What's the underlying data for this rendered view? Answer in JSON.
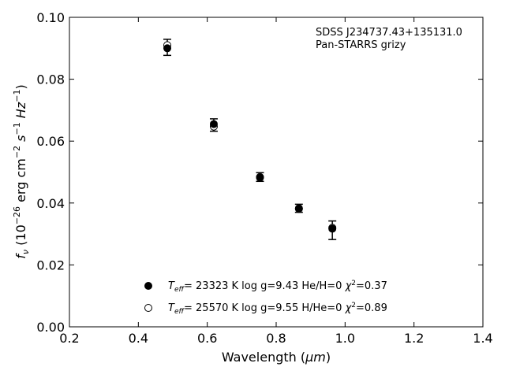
{
  "chart_data": {
    "type": "scatter",
    "annotation": [
      "SDSS J234737.43+135131.0",
      "Pan-STARRS grizy"
    ],
    "xlabel": {
      "text": "Wavelength (",
      "unit": "μm",
      "close": ")"
    },
    "ylabel": {
      "prefix": "f",
      "sub": "ν",
      "rest": " (10",
      "exp1": "−26",
      "units": " erg cm",
      "exp2": "−2",
      "s": " s",
      "exp3": "−1",
      "hz": " Hz",
      "exp4": "−1",
      "close": ")"
    },
    "xlim": [
      0.2,
      1.4
    ],
    "ylim": [
      0.0,
      0.1
    ],
    "xticks": [
      "0.2",
      "0.4",
      "0.6",
      "0.8",
      "1.0",
      "1.2",
      "1.4"
    ],
    "yticks": [
      "0.00",
      "0.02",
      "0.04",
      "0.06",
      "0.08",
      "0.10"
    ],
    "observed": {
      "x": [
        0.484,
        0.619,
        0.753,
        0.866,
        0.963
      ],
      "y": [
        0.0903,
        0.0652,
        0.0484,
        0.0383,
        0.0312
      ],
      "yerr": [
        0.0026,
        0.002,
        0.0014,
        0.0013,
        0.003
      ]
    },
    "series": [
      {
        "name": "Teff= 23323 K  log g=9.43  He/H=0  χ2=0.37",
        "label_parts": {
          "T": "T",
          "sub": "eff",
          "text": "= 23323 K  log g=9.43  He/H=0  ",
          "chi": "χ",
          "sup": "2",
          "val": "=0.37"
        },
        "marker": "filled",
        "x": [
          0.484,
          0.619,
          0.753,
          0.866,
          0.963
        ],
        "y": [
          0.09,
          0.0655,
          0.0482,
          0.0381,
          0.0317
        ]
      },
      {
        "name": "Teff= 25570 K  log g=9.55  H/He=0  χ2=0.89",
        "label_parts": {
          "T": "T",
          "sub": "eff",
          "text": "= 25570 K  log g=9.55  H/He=0  ",
          "chi": "χ",
          "sup": "2",
          "val": "=0.89"
        },
        "marker": "open",
        "x": [
          0.484,
          0.619,
          0.753,
          0.866,
          0.963
        ],
        "y": [
          0.091,
          0.0647,
          0.0484,
          0.0383,
          0.032
        ]
      }
    ],
    "grid": false,
    "legend_position": "bottom-center",
    "colors": {
      "marker": "#000000",
      "axes": "#000000",
      "background": "#ffffff"
    }
  }
}
